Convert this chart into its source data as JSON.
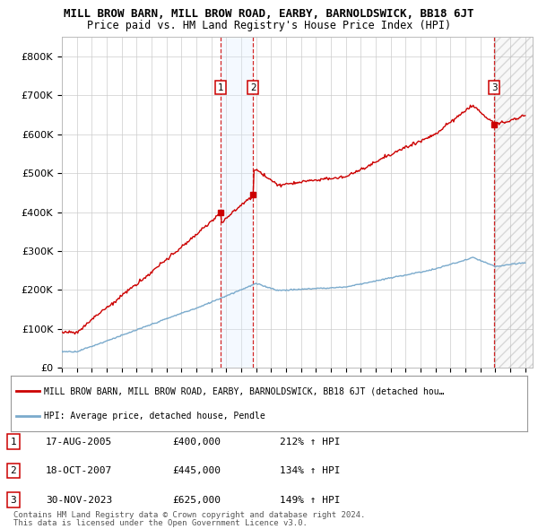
{
  "title": "MILL BROW BARN, MILL BROW ROAD, EARBY, BARNOLDSWICK, BB18 6JT",
  "subtitle": "Price paid vs. HM Land Registry's House Price Index (HPI)",
  "ylim": [
    0,
    850000
  ],
  "yticks": [
    0,
    100000,
    200000,
    300000,
    400000,
    500000,
    600000,
    700000,
    800000
  ],
  "ytick_labels": [
    "£0",
    "£100K",
    "£200K",
    "£300K",
    "£400K",
    "£500K",
    "£600K",
    "£700K",
    "£800K"
  ],
  "xlim_start": 1995.0,
  "xlim_end": 2026.5,
  "sale_dates": [
    2005.62,
    2007.79,
    2023.92
  ],
  "sale_prices": [
    400000,
    445000,
    625000
  ],
  "sale_labels": [
    "1",
    "2",
    "3"
  ],
  "sale_info": [
    {
      "label": "1",
      "date": "17-AUG-2005",
      "price": "£400,000",
      "hpi": "212% ↑ HPI"
    },
    {
      "label": "2",
      "date": "18-OCT-2007",
      "price": "£445,000",
      "hpi": "134% ↑ HPI"
    },
    {
      "label": "3",
      "date": "30-NOV-2023",
      "price": "£625,000",
      "hpi": "149% ↑ HPI"
    }
  ],
  "red_line_color": "#cc0000",
  "blue_line_color": "#7aaacc",
  "vline_color": "#cc0000",
  "shade_color": "#ddeeff",
  "hatch_color": "#cccccc",
  "legend_red_label": "MILL BROW BARN, MILL BROW ROAD, EARBY, BARNOLDSWICK, BB18 6JT (detached hou…",
  "legend_blue_label": "HPI: Average price, detached house, Pendle",
  "footer1": "Contains HM Land Registry data © Crown copyright and database right 2024.",
  "footer2": "This data is licensed under the Open Government Licence v3.0.",
  "background_color": "#ffffff",
  "grid_color": "#cccccc"
}
